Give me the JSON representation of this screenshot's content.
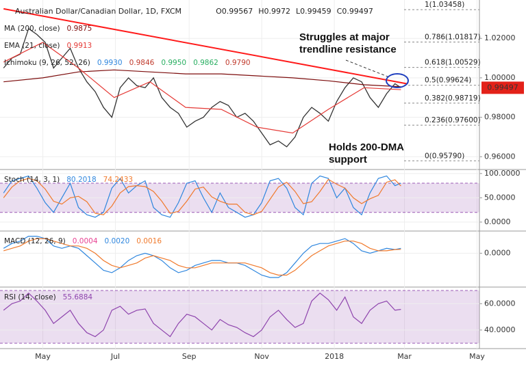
{
  "chart_data": [
    {
      "type": "line",
      "title": "Australian Dollar/Canadian Dollar, 1D, FXCM",
      "ohlc": [
        {
          "label": "O",
          "value": 0.99567
        },
        {
          "label": "H",
          "value": 0.9972
        },
        {
          "label": "L",
          "value": 0.99459
        },
        {
          "label": "C",
          "value": 0.99497
        }
      ],
      "last_price": 0.99497,
      "indicators": [
        {
          "label": "MA (200, close)",
          "readouts": [
            "0.9875"
          ]
        },
        {
          "label": "EMA (21, close)",
          "readouts": [
            "0.9913"
          ]
        },
        {
          "label": "Ichimoku (9, 26, 52, 26)",
          "readouts": [
            "0.9930",
            "0.9846",
            "0.9950",
            "0.9862",
            "0.9790"
          ]
        }
      ],
      "x": [
        -3,
        4,
        11,
        18,
        25,
        32,
        39,
        46,
        53,
        60,
        67,
        74,
        81,
        88,
        95,
        102,
        109,
        116,
        123,
        130,
        137,
        144,
        151,
        158,
        165,
        172,
        179,
        186,
        193,
        200,
        207,
        214,
        221,
        228,
        235,
        242,
        249,
        256,
        263,
        270,
        277,
        284,
        291,
        298,
        305,
        312,
        319,
        326,
        331
      ],
      "series": [
        {
          "color": "#333333",
          "values": [
            1.005,
            1.01,
            1.012,
            1.025,
            1.022,
            1.018,
            1.005,
            1.01,
            1.015,
            1.005,
            0.998,
            0.993,
            0.985,
            0.98,
            0.995,
            1.0,
            0.996,
            0.995,
            1.0,
            0.99,
            0.985,
            0.982,
            0.975,
            0.978,
            0.98,
            0.985,
            0.988,
            0.986,
            0.98,
            0.982,
            0.978,
            0.972,
            0.966,
            0.968,
            0.965,
            0.97,
            0.98,
            0.985,
            0.982,
            0.978,
            0.988,
            0.995,
            1.0,
            0.998,
            0.99,
            0.985,
            0.992,
            0.997,
            0.995
          ]
        },
        {
          "color": "#7b0a0a",
          "x": [
            -3,
            30,
            60,
            90,
            120,
            150,
            180,
            210,
            240,
            270,
            300,
            331
          ],
          "values": [
            0.998,
            1.0,
            1.003,
            1.004,
            1.003,
            1.002,
            1.002,
            1.001,
            1.0,
            0.9985,
            0.9965,
            0.9955
          ]
        },
        {
          "color": "#e53935",
          "x": [
            -3,
            30,
            60,
            90,
            120,
            150,
            180,
            210,
            240,
            270,
            300,
            331
          ],
          "values": [
            1.008,
            1.018,
            1.005,
            0.99,
            0.998,
            0.985,
            0.984,
            0.975,
            0.972,
            0.984,
            0.995,
            0.994
          ]
        }
      ],
      "trendline": {
        "color": "#ff1a1a",
        "x": [
          -3,
          336
        ],
        "values": [
          1.035,
          0.997
        ]
      },
      "fib_levels": [
        {
          "value": 1.03458,
          "label": "1(1.03458)"
        },
        {
          "value": 1.01817,
          "label": "0.786(1.01817)"
        },
        {
          "value": 1.00529,
          "label": "0.618(1.00529)"
        },
        {
          "value": 0.99624,
          "label": "0.5(0.99624)"
        },
        {
          "value": 0.98719,
          "label": "0.382(0.98719)"
        },
        {
          "value": 0.976,
          "label": "0.236(0.97600)"
        },
        {
          "value": 0.9579,
          "label": "0(0.95790)"
        }
      ],
      "annotations": [
        [
          "Struggles at major",
          "trendline resistance"
        ],
        [
          "Holds 200-DMA",
          "support"
        ]
      ],
      "xlim": [
        -6,
        397
      ],
      "xticks": [
        {
          "value": 30,
          "label": "May"
        },
        {
          "value": 91,
          "label": "Jul"
        },
        {
          "value": 153,
          "label": "Sep"
        },
        {
          "value": 214,
          "label": "Nov"
        },
        {
          "value": 275,
          "label": "2018"
        },
        {
          "value": 334,
          "label": "Mar"
        },
        {
          "value": 395,
          "label": "May"
        }
      ],
      "ylim": [
        0.9535,
        1.0381
      ],
      "yticks": [
        {
          "value": 1.02,
          "label": "1.02000"
        },
        {
          "value": 1.0,
          "label": "1.00000"
        },
        {
          "value": 0.98,
          "label": "0.98000"
        },
        {
          "value": 0.96,
          "label": "0.96000"
        }
      ]
    },
    {
      "type": "line",
      "label": "Stoch (14, 3, 1)",
      "readouts": [
        "80.2018",
        "74.2433"
      ],
      "ylim": [
        -12.8,
        102.6
      ],
      "yticks": [
        {
          "value": 100,
          "label": "100.0000"
        },
        {
          "value": 50,
          "label": "50.0000"
        },
        {
          "value": 0,
          "label": "0.0000"
        }
      ],
      "band": [
        20,
        80
      ],
      "series": [
        {
          "color": "#2e86de",
          "values": [
            60,
            85,
            90,
            95,
            70,
            40,
            20,
            50,
            80,
            30,
            15,
            10,
            20,
            70,
            90,
            60,
            75,
            85,
            30,
            15,
            10,
            40,
            80,
            85,
            50,
            20,
            60,
            30,
            20,
            10,
            15,
            40,
            85,
            90,
            70,
            30,
            15,
            80,
            95,
            90,
            50,
            70,
            30,
            15,
            60,
            90,
            95,
            75,
            80.2018
          ]
        },
        {
          "color": "#f0792b",
          "values": [
            50,
            72,
            85,
            90,
            85,
            68,
            43,
            37,
            50,
            53,
            42,
            18,
            15,
            33,
            60,
            73,
            75,
            73,
            63,
            43,
            18,
            22,
            43,
            68,
            72,
            52,
            43,
            37,
            37,
            20,
            15,
            22,
            47,
            72,
            82,
            63,
            38,
            42,
            63,
            88,
            78,
            70,
            50,
            38,
            48,
            55,
            82,
            87,
            74.2433
          ]
        }
      ]
    },
    {
      "type": "line",
      "label": "MACD (12, 26, 9)",
      "readouts": [
        "0.0004",
        "0.0020",
        "0.0016"
      ],
      "ylim": [
        -0.0128,
        0.008
      ],
      "yticks": [
        {
          "value": 0,
          "label": "0.0000"
        }
      ],
      "series": [
        {
          "color": "#2e86de",
          "values": [
            0.002,
            0.004,
            0.005,
            0.007,
            0.007,
            0.006,
            0.003,
            0.002,
            0.003,
            0.002,
            -0.001,
            -0.004,
            -0.007,
            -0.008,
            -0.006,
            -0.003,
            -0.001,
            0.0,
            -0.001,
            -0.003,
            -0.006,
            -0.008,
            -0.007,
            -0.005,
            -0.004,
            -0.003,
            -0.003,
            -0.004,
            -0.004,
            -0.005,
            -0.007,
            -0.009,
            -0.01,
            -0.01,
            -0.008,
            -0.004,
            0.0,
            0.003,
            0.004,
            0.004,
            0.005,
            0.006,
            0.004,
            0.001,
            0.0,
            0.001,
            0.002,
            0.0015,
            0.002
          ]
        },
        {
          "color": "#f0792b",
          "values": [
            0.001,
            0.002,
            0.003,
            0.005,
            0.006,
            0.006,
            0.005,
            0.004,
            0.003,
            0.003,
            0.002,
            0.0,
            -0.003,
            -0.005,
            -0.006,
            -0.005,
            -0.004,
            -0.002,
            -0.001,
            -0.002,
            -0.003,
            -0.005,
            -0.006,
            -0.006,
            -0.005,
            -0.004,
            -0.004,
            -0.004,
            -0.004,
            -0.004,
            -0.005,
            -0.006,
            -0.008,
            -0.009,
            -0.009,
            -0.007,
            -0.004,
            -0.001,
            0.001,
            0.003,
            0.004,
            0.005,
            0.005,
            0.004,
            0.002,
            0.001,
            0.001,
            0.0015,
            0.0016
          ]
        }
      ]
    },
    {
      "type": "line",
      "label": "RSI (14, close)",
      "readouts": [
        "55.6884"
      ],
      "ylim": [
        28,
        70.5
      ],
      "yticks": [
        {
          "value": 60,
          "label": "60.0000"
        },
        {
          "value": 40,
          "label": "40.0000"
        }
      ],
      "band": [
        30,
        70
      ],
      "series": [
        {
          "color": "#8e44ad",
          "values": [
            55,
            60,
            62,
            68,
            62,
            55,
            45,
            50,
            55,
            45,
            38,
            35,
            40,
            55,
            58,
            52,
            55,
            56,
            45,
            40,
            35,
            45,
            52,
            50,
            45,
            40,
            48,
            44,
            42,
            38,
            35,
            40,
            50,
            55,
            48,
            42,
            45,
            62,
            68,
            63,
            55,
            65,
            50,
            45,
            55,
            60,
            62,
            55,
            55.6884
          ]
        }
      ]
    }
  ]
}
